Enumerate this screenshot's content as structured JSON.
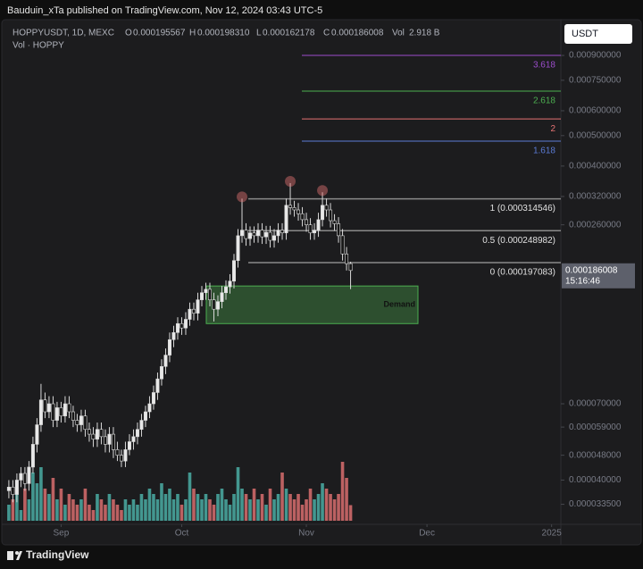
{
  "header": {
    "published": "Bauduin_xTa published on TradingView.com, Nov 12, 2024 03:43 UTC-5"
  },
  "chart_data": {
    "type": "candlestick",
    "title": "HOPPYUSDT, 1D, MEXC",
    "legend": {
      "o_label": "O",
      "open": "0.000195567",
      "h_label": "H",
      "high": "0.000198310",
      "l_label": "L",
      "low": "0.000162178",
      "c_label": "C",
      "close": "0.000186008",
      "vol_label": "Vol",
      "vol": "2.918 B"
    },
    "volume_title": "Vol · HOPPY",
    "currency": "USDT",
    "last_price": "0.000186008",
    "countdown": "15:16:46",
    "open": [
      3.7e-05,
      3.8e-05,
      3.6e-05,
      4e-05,
      4.2e-05,
      3.9e-05,
      4.4e-05,
      5.2e-05,
      6e-05,
      7.2e-05,
      6.6e-05,
      7e-05,
      6.2e-05,
      6.8e-05,
      6.4e-05,
      7e-05,
      6.6e-05,
      6.2e-05,
      6e-05,
      6.4e-05,
      5.8e-05,
      5.6e-05,
      5.4e-05,
      5.8e-05,
      5.5e-05,
      5.2e-05,
      5.6e-05,
      5e-05,
      4.8e-05,
      4.6e-05,
      5e-05,
      5.3e-05,
      5.5e-05,
      5.8e-05,
      6.2e-05,
      6.6e-05,
      7e-05,
      7.6e-05,
      8.4e-05,
      9.2e-05,
      0.0001,
      0.000112,
      0.000118,
      0.000126,
      0.000122,
      0.00013,
      0.00014,
      0.000136,
      0.00015,
      0.000158,
      0.000162,
      0.00015,
      0.00014,
      0.000148,
      0.000158,
      0.000165,
      0.000172,
      0.0002,
      0.00024,
      0.00025,
      0.000235,
      0.000245,
      0.00024,
      0.00025,
      0.000238,
      0.000246,
      0.000232,
      0.00024,
      0.00025,
      0.000245,
      0.0003,
      0.000295,
      0.00029,
      0.000282,
      0.00027,
      0.00026,
      0.000245,
      0.00025,
      0.00027,
      0.0003,
      0.00029,
      0.000268,
      0.000262,
      0.00024,
      0.00021,
      0.000195567
    ],
    "high": [
      4e-05,
      4e-05,
      4.2e-05,
      4.4e-05,
      4.4e-05,
      4.6e-05,
      5.5e-05,
      6.3e-05,
      8.1e-05,
      7.6e-05,
      7.4e-05,
      7.4e-05,
      7.1e-05,
      7.1e-05,
      7.4e-05,
      7.4e-05,
      6.9e-05,
      6.5e-05,
      6.7e-05,
      6.7e-05,
      6.1e-05,
      5.9e-05,
      6.1e-05,
      6.1e-05,
      5.8e-05,
      5.9e-05,
      5.9e-05,
      5.3e-05,
      5e-05,
      5.3e-05,
      5.6e-05,
      5.8e-05,
      6.1e-05,
      6.5e-05,
      6.9e-05,
      7.4e-05,
      8e-05,
      8.8e-05,
      9.7e-05,
      0.000105,
      0.000118,
      0.000124,
      0.000132,
      0.000132,
      0.000137,
      0.000147,
      0.000147,
      0.000158,
      0.000166,
      0.00017,
      0.00017,
      0.000158,
      0.000155,
      0.000166,
      0.000173,
      0.000181,
      0.00021,
      0.000252,
      0.000315,
      0.000263,
      0.000257,
      0.000257,
      0.000263,
      0.000263,
      0.000258,
      0.000258,
      0.000252,
      0.000263,
      0.000263,
      0.000315,
      0.000353,
      0.00031,
      0.000305,
      0.000296,
      0.000284,
      0.000273,
      0.000263,
      0.000284,
      0.00033,
      0.000315,
      0.000305,
      0.000281,
      0.000275,
      0.000252,
      0.000221,
      0.00019831
    ],
    "low": [
      3.5e-05,
      3.4e-05,
      3.4e-05,
      3.8e-05,
      3.7e-05,
      3.7e-05,
      4.2e-05,
      4.9e-05,
      5.7e-05,
      6.3e-05,
      6.3e-05,
      5.9e-05,
      5.9e-05,
      6.1e-05,
      6.1e-05,
      6.3e-05,
      5.9e-05,
      5.7e-05,
      5.7e-05,
      5.5e-05,
      5.3e-05,
      5.1e-05,
      5.1e-05,
      5.2e-05,
      4.9e-05,
      4.9e-05,
      4.7e-05,
      4.6e-05,
      4.4e-05,
      4.4e-05,
      4.8e-05,
      5e-05,
      5.2e-05,
      5.5e-05,
      5.9e-05,
      6.3e-05,
      6.7e-05,
      7.2e-05,
      8e-05,
      8.7e-05,
      9.5e-05,
      0.000106,
      0.000112,
      0.000116,
      0.000116,
      0.000124,
      0.000129,
      0.000129,
      0.000143,
      0.00015,
      0.000143,
      0.000128,
      0.000133,
      0.000141,
      0.00015,
      0.000157,
      0.000163,
      0.00019,
      0.000228,
      0.000223,
      0.000223,
      0.000228,
      0.000228,
      0.000226,
      0.000226,
      0.00022,
      0.00022,
      0.000228,
      0.000233,
      0.000233,
      0.00028,
      0.000276,
      0.000268,
      0.000257,
      0.000247,
      0.000233,
      0.000233,
      0.000238,
      0.000257,
      0.000276,
      0.000255,
      0.000249,
      0.000228,
      0.0002,
      0.000186,
      0.000162178
    ],
    "close": [
      3.8e-05,
      3.6e-05,
      4e-05,
      4.2e-05,
      3.9e-05,
      4.4e-05,
      5.2e-05,
      6e-05,
      7.2e-05,
      6.6e-05,
      7e-05,
      6.2e-05,
      6.8e-05,
      6.4e-05,
      7e-05,
      6.6e-05,
      6.2e-05,
      6e-05,
      6.4e-05,
      5.8e-05,
      5.6e-05,
      5.4e-05,
      5.8e-05,
      5.5e-05,
      5.2e-05,
      5.6e-05,
      5e-05,
      4.8e-05,
      4.6e-05,
      5e-05,
      5.3e-05,
      5.5e-05,
      5.8e-05,
      6.2e-05,
      6.6e-05,
      7e-05,
      7.6e-05,
      8.4e-05,
      9.2e-05,
      0.0001,
      0.000112,
      0.000118,
      0.000126,
      0.000122,
      0.00013,
      0.00014,
      0.000136,
      0.00015,
      0.000158,
      0.000162,
      0.00015,
      0.00014,
      0.000148,
      0.000158,
      0.000165,
      0.000172,
      0.0002,
      0.00024,
      0.00025,
      0.000235,
      0.000245,
      0.00024,
      0.00025,
      0.000238,
      0.000246,
      0.000232,
      0.00024,
      0.00025,
      0.000245,
      0.0003,
      0.000295,
      0.00029,
      0.000282,
      0.00027,
      0.00026,
      0.000245,
      0.00025,
      0.00027,
      0.0003,
      0.00029,
      0.000268,
      0.000262,
      0.00024,
      0.00021,
      0.000195567,
      0.000186008
    ],
    "volume": [
      3,
      4,
      5,
      2,
      6,
      4,
      9,
      7,
      10,
      6,
      5,
      8,
      4,
      6,
      3,
      5,
      4,
      3,
      4,
      6,
      3,
      2,
      5,
      4,
      3,
      5,
      4,
      3,
      2,
      4,
      3,
      4,
      3,
      5,
      4,
      6,
      5,
      4,
      7,
      5,
      6,
      4,
      5,
      3,
      4,
      9,
      6,
      5,
      4,
      5,
      4,
      3,
      5,
      6,
      4,
      3,
      5,
      10,
      6,
      5,
      4,
      6,
      4,
      5,
      3,
      6,
      4,
      5,
      9,
      6,
      5,
      4,
      5,
      3,
      4,
      6,
      4,
      5,
      7,
      6,
      5,
      4,
      5,
      11,
      8,
      2.918
    ],
    "up_color": "#e8e8e8",
    "down_color": "#161616",
    "volume_up_color": "#4db6ac",
    "volume_down_color": "#e57373",
    "log_scale": true,
    "ylim": [
      2.93e-05,
      0.00117
    ],
    "yticks": [
      {
        "value": 0.0009,
        "label": "0.000900000"
      },
      {
        "value": 0.00075,
        "label": "0.000750000"
      },
      {
        "value": 0.0006,
        "label": "0.000600000"
      },
      {
        "value": 0.0005,
        "label": "0.000500000"
      },
      {
        "value": 0.0004,
        "label": "0.000400000"
      },
      {
        "value": 0.00032,
        "label": "0.000320000"
      },
      {
        "value": 0.00026,
        "label": "0.000260000"
      },
      {
        "value": 7e-05,
        "label": "0.000070000"
      },
      {
        "value": 5.9e-05,
        "label": "0.000059000"
      },
      {
        "value": 4.8e-05,
        "label": "0.000048000"
      },
      {
        "value": 4e-05,
        "label": "0.000040000"
      },
      {
        "value": 3.35e-05,
        "label": "0.000033500"
      }
    ],
    "xlim": [
      -2.2,
      137.3
    ],
    "xticks": [
      {
        "value": 13,
        "label": "Sep"
      },
      {
        "value": 43,
        "label": "Oct"
      },
      {
        "value": 74,
        "label": "Nov"
      },
      {
        "value": 104,
        "label": "Dec"
      },
      {
        "value": 135,
        "label": "2025"
      }
    ],
    "fib_levels": [
      {
        "label": "3.618",
        "value": 0.0009,
        "color": "#9c4dcc"
      },
      {
        "label": "2.618",
        "value": 0.000693,
        "color": "#4caf50"
      },
      {
        "label": "2",
        "value": 0.000565,
        "color": "#e57373"
      },
      {
        "label": "1.618",
        "value": 0.00048,
        "color": "#5b7bd5"
      },
      {
        "label": "1 (0.000314546)",
        "value": 0.000314546,
        "color": "#8a8a8a"
      },
      {
        "label": "0.5 (0.000248982)",
        "value": 0.000248982,
        "color": "#8a8a8a"
      },
      {
        "label": "0 (0.000197083)",
        "value": 0.000197083,
        "color": "#8a8a8a"
      }
    ],
    "demand": {
      "label": "Demand",
      "top": 0.000166,
      "bottom": 0.000126,
      "color": "#4caf50"
    }
  },
  "footer": {
    "brand": "TradingView"
  }
}
